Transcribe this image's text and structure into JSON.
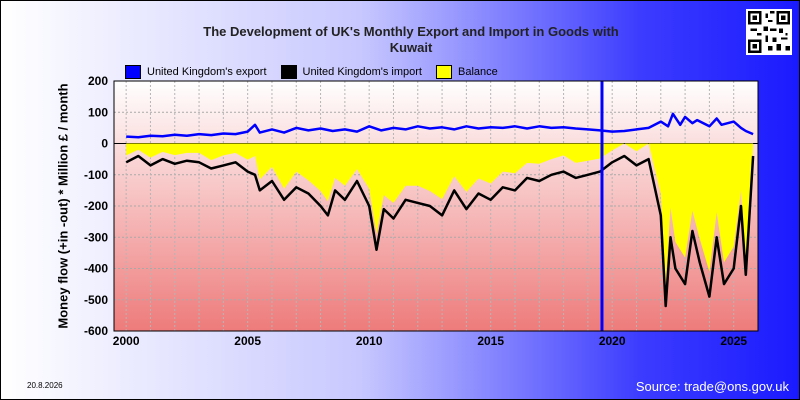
{
  "title_line1": "The Development of UK's Monthly Export and Import in Goods with",
  "title_line2": "Kuwait",
  "legend": [
    {
      "label": "United Kingdom's export",
      "color": "#0000ff"
    },
    {
      "label": "United Kingdom's import",
      "color": "#000000"
    },
    {
      "label": "Balance",
      "color": "#ffff00"
    }
  ],
  "date_stamp": "20.8.2026",
  "source": "Source: trade@ons.gov.uk",
  "chart_data": {
    "type": "line",
    "ylabel": "Money flow (+in -out) * Million £ / month",
    "ylim": [
      -600,
      200
    ],
    "yticks": [
      200,
      100,
      0,
      -100,
      -200,
      -300,
      -400,
      -500,
      -600
    ],
    "xlim": [
      1999.5,
      2026.0
    ],
    "xticks": [
      2000,
      2005,
      2010,
      2015,
      2020,
      2025
    ],
    "marker_line_year": 2019.58,
    "grid": true,
    "legend_position": "top",
    "series": [
      {
        "name": "United Kingdom's export",
        "color": "#0000ff",
        "x": [
          2000.0,
          2000.5,
          2001.0,
          2001.5,
          2002.0,
          2002.5,
          2003.0,
          2003.5,
          2004.0,
          2004.5,
          2005.0,
          2005.3,
          2005.5,
          2006.0,
          2006.5,
          2007.0,
          2007.5,
          2008.0,
          2008.5,
          2009.0,
          2009.5,
          2010.0,
          2010.5,
          2011.0,
          2011.5,
          2012.0,
          2012.5,
          2013.0,
          2013.5,
          2014.0,
          2014.5,
          2015.0,
          2015.5,
          2016.0,
          2016.5,
          2017.0,
          2017.5,
          2018.0,
          2018.5,
          2019.0,
          2019.5,
          2020.0,
          2020.5,
          2021.0,
          2021.5,
          2022.0,
          2022.3,
          2022.5,
          2022.8,
          2023.0,
          2023.3,
          2023.5,
          2024.0,
          2024.3,
          2024.5,
          2025.0,
          2025.3,
          2025.5,
          2025.8
        ],
        "y": [
          22,
          20,
          25,
          23,
          28,
          25,
          30,
          27,
          32,
          30,
          38,
          60,
          35,
          45,
          35,
          50,
          42,
          48,
          40,
          45,
          38,
          55,
          42,
          50,
          45,
          55,
          48,
          52,
          45,
          55,
          48,
          52,
          50,
          55,
          48,
          55,
          50,
          52,
          48,
          45,
          42,
          38,
          40,
          45,
          50,
          70,
          55,
          95,
          60,
          85,
          65,
          75,
          55,
          80,
          60,
          70,
          50,
          40,
          30
        ]
      },
      {
        "name": "United Kingdom's import",
        "color": "#000000",
        "x": [
          2000.0,
          2000.5,
          2001.0,
          2001.5,
          2002.0,
          2002.5,
          2003.0,
          2003.5,
          2004.0,
          2004.5,
          2005.0,
          2005.3,
          2005.5,
          2006.0,
          2006.5,
          2007.0,
          2007.5,
          2008.0,
          2008.3,
          2008.6,
          2009.0,
          2009.5,
          2010.0,
          2010.3,
          2010.6,
          2011.0,
          2011.5,
          2012.0,
          2012.5,
          2013.0,
          2013.5,
          2014.0,
          2014.5,
          2015.0,
          2015.5,
          2016.0,
          2016.5,
          2017.0,
          2017.5,
          2018.0,
          2018.5,
          2019.0,
          2019.5,
          2020.0,
          2020.5,
          2021.0,
          2021.5,
          2022.0,
          2022.2,
          2022.4,
          2022.6,
          2023.0,
          2023.3,
          2023.6,
          2024.0,
          2024.3,
          2024.6,
          2025.0,
          2025.3,
          2025.5,
          2025.8
        ],
        "y": [
          -60,
          -40,
          -70,
          -50,
          -65,
          -55,
          -60,
          -80,
          -70,
          -60,
          -90,
          -100,
          -150,
          -120,
          -180,
          -140,
          -160,
          -200,
          -230,
          -150,
          -180,
          -120,
          -200,
          -340,
          -210,
          -240,
          -180,
          -190,
          -200,
          -230,
          -150,
          -210,
          -160,
          -180,
          -140,
          -150,
          -110,
          -120,
          -100,
          -90,
          -110,
          -100,
          -90,
          -60,
          -40,
          -70,
          -50,
          -230,
          -520,
          -300,
          -400,
          -450,
          -280,
          -380,
          -490,
          -300,
          -450,
          -400,
          -200,
          -420,
          -40
        ]
      },
      {
        "name": "Balance",
        "color": "#ffff00",
        "x": [
          2000.0,
          2000.5,
          2001.0,
          2001.5,
          2002.0,
          2002.5,
          2003.0,
          2003.5,
          2004.0,
          2004.5,
          2005.0,
          2005.3,
          2005.5,
          2006.0,
          2006.5,
          2007.0,
          2007.5,
          2008.0,
          2008.3,
          2008.6,
          2009.0,
          2009.5,
          2010.0,
          2010.3,
          2010.6,
          2011.0,
          2011.5,
          2012.0,
          2012.5,
          2013.0,
          2013.5,
          2014.0,
          2014.5,
          2015.0,
          2015.5,
          2016.0,
          2016.5,
          2017.0,
          2017.5,
          2018.0,
          2018.5,
          2019.0,
          2019.5,
          2020.0,
          2020.5,
          2021.0,
          2021.5,
          2022.0,
          2022.2,
          2022.4,
          2022.6,
          2023.0,
          2023.3,
          2023.6,
          2024.0,
          2024.3,
          2024.6,
          2025.0,
          2025.3,
          2025.5,
          2025.8
        ],
        "y": [
          -38,
          -20,
          -45,
          -27,
          -37,
          -30,
          -30,
          -53,
          -38,
          -30,
          -52,
          -40,
          -115,
          -75,
          -145,
          -90,
          -118,
          -152,
          -185,
          -110,
          -135,
          -82,
          -145,
          -290,
          -165,
          -190,
          -135,
          -135,
          -152,
          -178,
          -105,
          -155,
          -112,
          -128,
          -90,
          -95,
          -62,
          -65,
          -50,
          -38,
          -62,
          -55,
          -48,
          -22,
          0,
          -25,
          0,
          -160,
          -450,
          -205,
          -315,
          -365,
          -215,
          -305,
          -410,
          -220,
          -380,
          -330,
          -150,
          -380,
          -10
        ]
      }
    ]
  }
}
